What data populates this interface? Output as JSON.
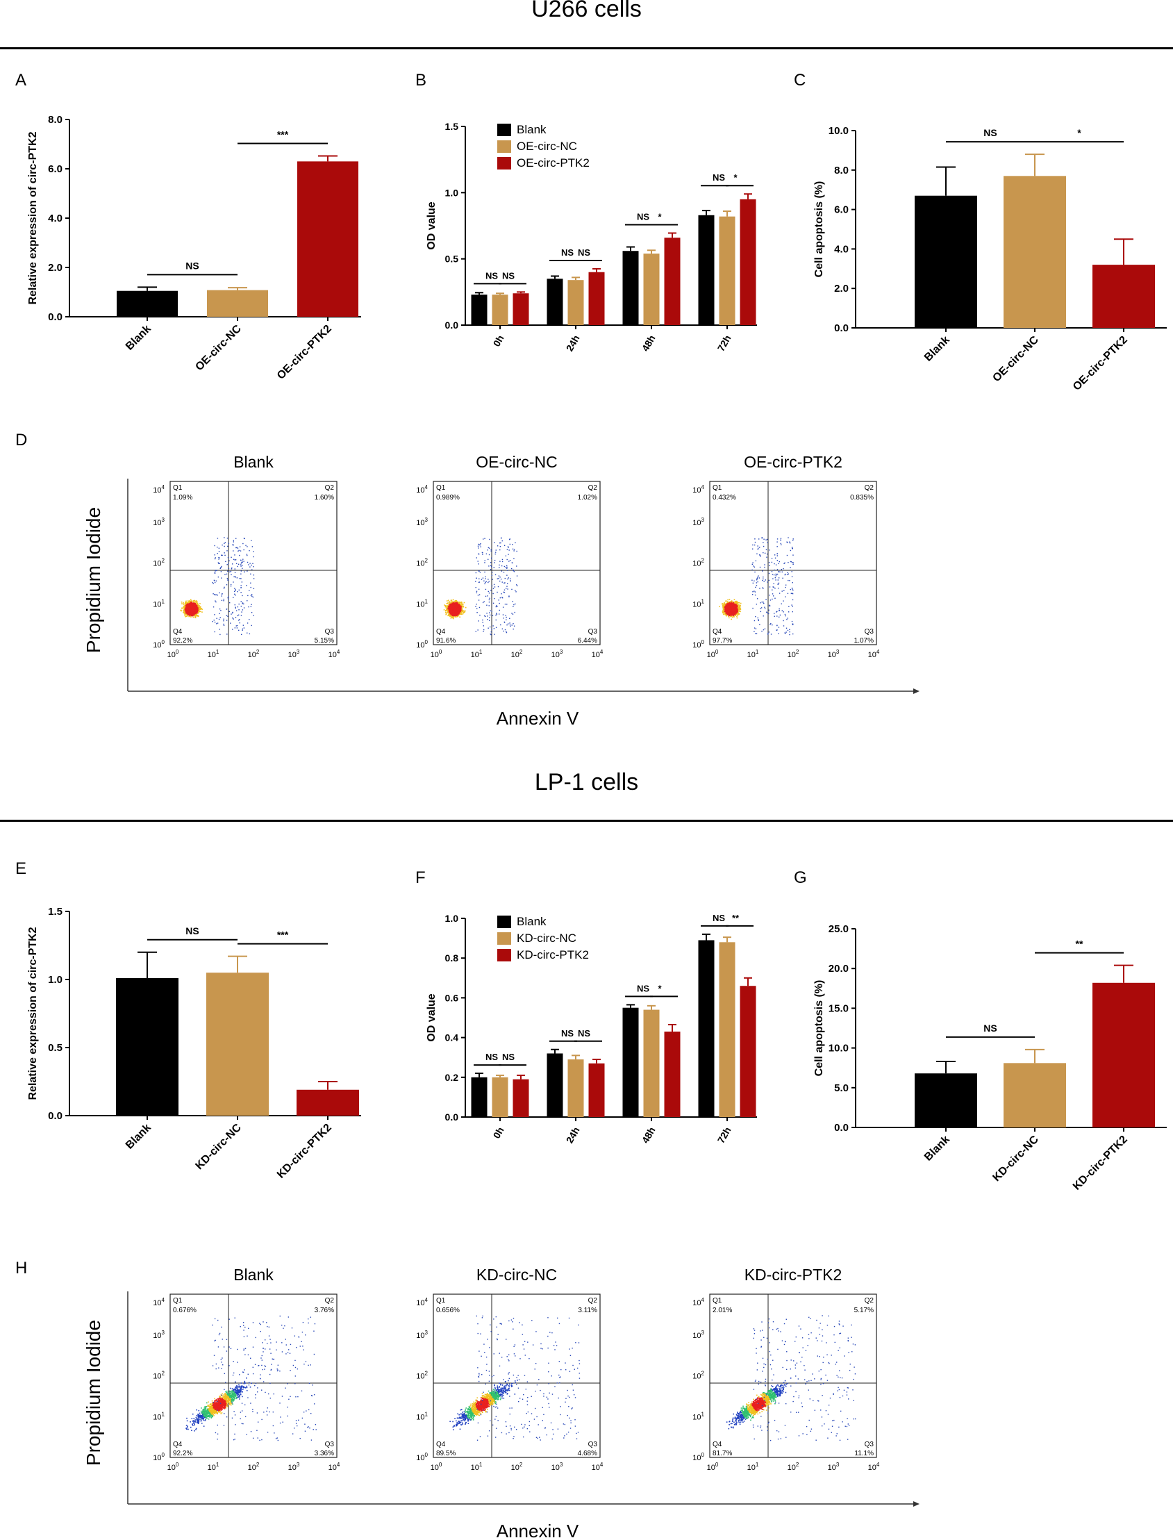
{
  "sections": [
    {
      "title": "U266 cells"
    },
    {
      "title": "LP-1 cells"
    }
  ],
  "panel_letters": [
    "A",
    "B",
    "C",
    "D",
    "E",
    "F",
    "G",
    "H"
  ],
  "colors": {
    "blank": "#000000",
    "nc": "#c8964e",
    "ptk2": "#aa0a0a"
  },
  "chart_data": [
    {
      "id": "A",
      "type": "bar",
      "categories": [
        "Blank",
        "OE-circ-NC",
        "OE-circ-PTK2"
      ],
      "values": [
        1.05,
        1.08,
        6.3
      ],
      "errors": [
        0.15,
        0.1,
        0.22
      ],
      "ylabel": "Relative expression of circ-PTK2",
      "ylim": [
        0,
        8
      ],
      "yticks": [
        "0.0",
        "2.0",
        "4.0",
        "6.0",
        "8.0"
      ],
      "sig": [
        {
          "label": "NS",
          "from": 0,
          "to": 1
        },
        {
          "label": "***",
          "from": 1,
          "to": 2
        }
      ]
    },
    {
      "id": "B",
      "type": "bar",
      "categories": [
        "0h",
        "24h",
        "48h",
        "72h"
      ],
      "series": [
        {
          "name": "Blank",
          "values": [
            0.23,
            0.35,
            0.56,
            0.83
          ],
          "errors": [
            0.015,
            0.02,
            0.03,
            0.035
          ]
        },
        {
          "name": "OE-circ-NC",
          "values": [
            0.23,
            0.34,
            0.54,
            0.82
          ],
          "errors": [
            0.01,
            0.02,
            0.025,
            0.04
          ]
        },
        {
          "name": "OE-circ-PTK2",
          "values": [
            0.24,
            0.4,
            0.66,
            0.95
          ],
          "errors": [
            0.01,
            0.025,
            0.035,
            0.04
          ]
        }
      ],
      "ylabel": "OD value",
      "ylim": [
        0,
        1.5
      ],
      "yticks": [
        "0.0",
        "0.5",
        "1.0",
        "1.5"
      ],
      "sig": [
        {
          "label": "NS",
          "group": 0,
          "from": 0,
          "to": 1
        },
        {
          "label": "NS",
          "group": 0,
          "from": 1,
          "to": 2
        },
        {
          "label": "NS",
          "group": 1,
          "from": 0,
          "to": 1
        },
        {
          "label": "NS",
          "group": 1,
          "from": 1,
          "to": 2
        },
        {
          "label": "NS",
          "group": 2,
          "from": 0,
          "to": 1
        },
        {
          "label": "*",
          "group": 2,
          "from": 1,
          "to": 2
        },
        {
          "label": "NS",
          "group": 3,
          "from": 0,
          "to": 1
        },
        {
          "label": "*",
          "group": 3,
          "from": 1,
          "to": 2
        }
      ]
    },
    {
      "id": "C",
      "type": "bar",
      "categories": [
        "Blank",
        "OE-circ-NC",
        "OE-circ-PTK2"
      ],
      "values": [
        6.7,
        7.7,
        3.2
      ],
      "errors": [
        1.45,
        1.1,
        1.3
      ],
      "ylabel": "Cell apoptosis (%)",
      "ylim": [
        0,
        10
      ],
      "yticks": [
        "0.0",
        "2.0",
        "4.0",
        "6.0",
        "8.0",
        "10.0"
      ],
      "sig": [
        {
          "label": "NS",
          "from": 0,
          "to": 1
        },
        {
          "label": "*",
          "from": 1,
          "to": 2
        }
      ]
    },
    {
      "id": "E",
      "type": "bar",
      "categories": [
        "Blank",
        "KD-circ-NC",
        "KD-circ-PTK2"
      ],
      "values": [
        1.01,
        1.05,
        0.19
      ],
      "errors": [
        0.19,
        0.12,
        0.06
      ],
      "ylabel": "Relative expression of circ-PTK2",
      "ylim": [
        0,
        1.5
      ],
      "yticks": [
        "0.0",
        "0.5",
        "1.0",
        "1.5"
      ],
      "sig": [
        {
          "label": "NS",
          "from": 0,
          "to": 1
        },
        {
          "label": "***",
          "from": 1,
          "to": 2
        }
      ]
    },
    {
      "id": "F",
      "type": "bar",
      "categories": [
        "0h",
        "24h",
        "48h",
        "72h"
      ],
      "series": [
        {
          "name": "Blank",
          "values": [
            0.2,
            0.32,
            0.55,
            0.89
          ],
          "errors": [
            0.02,
            0.02,
            0.015,
            0.03
          ]
        },
        {
          "name": "KD-circ-NC",
          "values": [
            0.2,
            0.29,
            0.54,
            0.88
          ],
          "errors": [
            0.01,
            0.02,
            0.02,
            0.025
          ]
        },
        {
          "name": "KD-circ-PTK2",
          "values": [
            0.19,
            0.27,
            0.43,
            0.66
          ],
          "errors": [
            0.02,
            0.02,
            0.035,
            0.04
          ]
        }
      ],
      "ylabel": "OD value",
      "ylim": [
        0,
        1.0
      ],
      "yticks": [
        "0.0",
        "0.2",
        "0.4",
        "0.6",
        "0.8",
        "1.0"
      ],
      "sig": [
        {
          "label": "NS",
          "group": 0,
          "from": 0,
          "to": 1
        },
        {
          "label": "NS",
          "group": 0,
          "from": 1,
          "to": 2
        },
        {
          "label": "NS",
          "group": 1,
          "from": 0,
          "to": 1
        },
        {
          "label": "NS",
          "group": 1,
          "from": 1,
          "to": 2
        },
        {
          "label": "NS",
          "group": 2,
          "from": 0,
          "to": 1
        },
        {
          "label": "*",
          "group": 2,
          "from": 1,
          "to": 2
        },
        {
          "label": "NS",
          "group": 3,
          "from": 0,
          "to": 1
        },
        {
          "label": "**",
          "group": 3,
          "from": 1,
          "to": 2
        }
      ]
    },
    {
      "id": "G",
      "type": "bar",
      "categories": [
        "Blank",
        "KD-circ-NC",
        "KD-circ-PTK2"
      ],
      "values": [
        6.8,
        8.1,
        18.2
      ],
      "errors": [
        1.5,
        1.7,
        2.2
      ],
      "ylabel": "Cell apoptosis (%)",
      "ylim": [
        0,
        25
      ],
      "yticks": [
        "0.0",
        "5.0",
        "10.0",
        "15.0",
        "20.0",
        "25.0"
      ],
      "sig": [
        {
          "label": "NS",
          "from": 0,
          "to": 1
        },
        {
          "label": "**",
          "from": 1,
          "to": 2
        }
      ]
    }
  ],
  "flow_panels": [
    {
      "id": "D",
      "ylabel": "Propidium Iodide",
      "xlabel": "Annexin V",
      "plots": [
        {
          "title": "Blank",
          "q1": "1.09%",
          "q2": "1.60%",
          "q3": "5.15%",
          "q4": "92.2%"
        },
        {
          "title": "OE-circ-NC",
          "q1": "0.989%",
          "q2": "1.02%",
          "q3": "6.44%",
          "q4": "91.6%"
        },
        {
          "title": "OE-circ-PTK2",
          "q1": "0.432%",
          "q2": "0.835%",
          "q3": "1.07%",
          "q4": "97.7%"
        }
      ]
    },
    {
      "id": "H",
      "ylabel": "Propidium Iodide",
      "xlabel": "Annexin V",
      "plots": [
        {
          "title": "Blank",
          "q1": "0.676%",
          "q2": "3.76%",
          "q3": "3.36%",
          "q4": "92.2%"
        },
        {
          "title": "KD-circ-NC",
          "q1": "0.656%",
          "q2": "3.11%",
          "q3": "4.68%",
          "q4": "89.5%"
        },
        {
          "title": "KD-circ-PTK2",
          "q1": "2.01%",
          "q2": "5.17%",
          "q3": "11.1%",
          "q4": "81.7%"
        }
      ]
    }
  ],
  "flow_axis": {
    "quadrant_names": [
      "Q1",
      "Q2",
      "Q3",
      "Q4"
    ],
    "tick_base": "10",
    "tick_exponents": [
      "0",
      "1",
      "2",
      "3",
      "4"
    ]
  }
}
